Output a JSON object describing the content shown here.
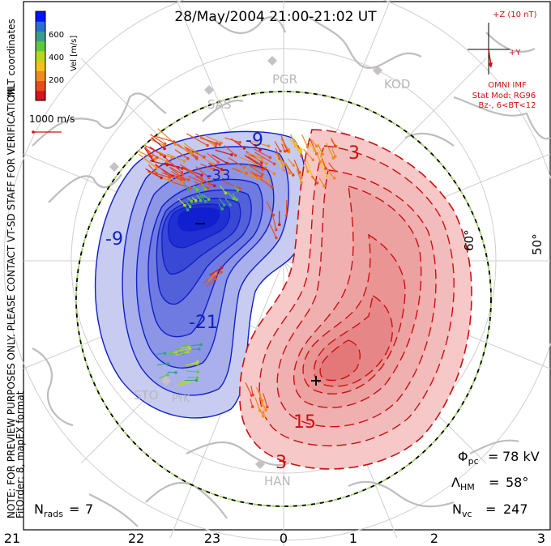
{
  "title": "28/May/2004 21:00-21:02 UT",
  "side_note": {
    "line1": "NOTE: FOR PREVIEW PURPOSES ONLY. PLEASE CONTACT VT-SD STAFF FOR VERIFICATION.",
    "line2": "FitOrder: 8, mapEX format"
  },
  "coords_label": "MLT coordinates",
  "colorbar": {
    "label": "Vel [m/s]",
    "ticks": [
      "600",
      "400",
      "200"
    ],
    "colors": [
      "#0014ff",
      "#2a6fd0",
      "#3a9e8a",
      "#5fc93c",
      "#b7d81e",
      "#f2c21a",
      "#f08a1c",
      "#ea4a1d",
      "#d4141e"
    ]
  },
  "vector_scale": "1000 m/s",
  "imf": {
    "z_label": "+Z (10 nT)",
    "y_label": "+Y",
    "source": "OMNI IMF",
    "model_line1": "Stat Mod: RG96",
    "model_line2": "Bz-, 6<BT<12"
  },
  "stations": [
    {
      "code": "PGR"
    },
    {
      "code": "KOD"
    },
    {
      "code": "SAS"
    },
    {
      "code": "STO"
    },
    {
      "code": "PYK"
    },
    {
      "code": "HAN"
    }
  ],
  "lat_labels": [
    "60°",
    "50°"
  ],
  "mlt_labels": [
    "21",
    "22",
    "23",
    "0",
    "1",
    "2",
    "3"
  ],
  "contour_labels": {
    "neg": [
      "-9",
      "-33",
      "-9",
      "-21"
    ],
    "pos": [
      "3",
      "15",
      "3"
    ]
  },
  "stats": {
    "phi_pc": "78 kV",
    "lambda_hm": "58°",
    "n_vc": "247",
    "n_rads": "7"
  },
  "colors": {
    "negative_fill": "#c8ccf0",
    "negative_line": "#1020c8",
    "positive_fill": "#f6c8c8",
    "positive_line": "#cc1010",
    "coastline": "#bdbdbd",
    "imf_red": "#d21010"
  }
}
